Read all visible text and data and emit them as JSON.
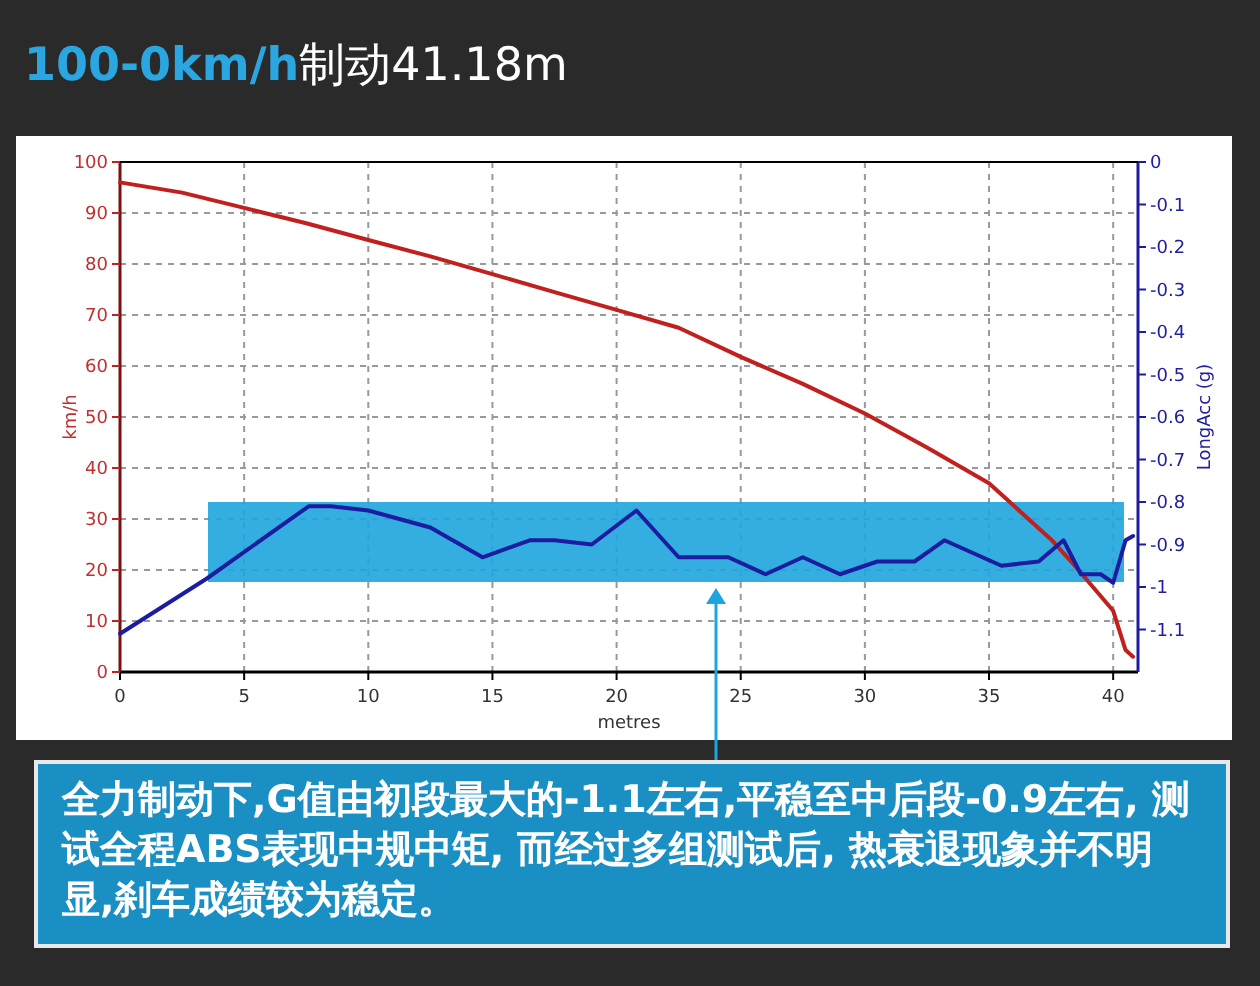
{
  "chart_data": {
    "type": "line",
    "title": "**100-0km/h**制动41.18m",
    "xlabel": "metres",
    "ylabel": "km/h",
    "y2label": "LongAcc (g)",
    "xlim": [
      0,
      41
    ],
    "xticks": [
      0,
      5,
      10,
      15,
      20,
      25,
      30,
      35,
      40
    ],
    "ylim": [
      0,
      100
    ],
    "yticks": [
      0,
      10,
      20,
      30,
      40,
      50,
      60,
      70,
      80,
      90,
      100
    ],
    "y2lim": [
      -1.2,
      0
    ],
    "y2ticks": [
      0,
      -0.1,
      -0.2,
      -0.3,
      -0.4,
      -0.5,
      -0.6,
      -0.7,
      -0.8,
      -0.9,
      -1,
      -1.1
    ],
    "grid": true,
    "line_style": "solid",
    "series": [
      {
        "color": "#c0201e",
        "x": [
          0,
          2.5,
          5,
          7.5,
          10,
          12.5,
          15,
          17.5,
          20,
          22.5,
          25,
          27.5,
          30,
          32.5,
          35,
          37.5,
          38.5,
          40,
          40.5,
          40.8
        ],
        "values": [
          96,
          94,
          91,
          88,
          84.7,
          81.5,
          78,
          74.5,
          71,
          67.5,
          61.8,
          56.5,
          50.7,
          44,
          37,
          26,
          20.6,
          12,
          4.3,
          3
        ]
      },
      {
        "color": "#1c1ca0",
        "axis": "y2",
        "x": [
          0,
          3.5,
          7.6,
          8.5,
          10,
          12.5,
          14.6,
          16.5,
          17.5,
          19,
          20.8,
          22.5,
          24.5,
          26,
          27.5,
          29,
          30.5,
          32,
          33.2,
          35.5,
          37,
          38,
          38.7,
          39.5,
          40,
          40.5,
          40.8
        ],
        "values": [
          -1.11,
          -0.98,
          -0.81,
          -0.81,
          -0.82,
          -0.86,
          -0.93,
          -0.89,
          -0.89,
          -0.9,
          -0.82,
          -0.93,
          -0.93,
          -0.97,
          -0.93,
          -0.97,
          -0.94,
          -0.94,
          -0.89,
          -0.95,
          -0.94,
          -0.89,
          -0.97,
          -0.97,
          -0.99,
          -0.89,
          -0.88
        ]
      }
    ],
    "annotations": [
      "全力制动下,G值由初段最大的-1.1左右,平稳至中后段-0.9左右, 测试全程ABS表现中规中矩, 而经过多组测试后, 热衰退现象并不明显,刹车成绩较为稳定。"
    ]
  }
}
